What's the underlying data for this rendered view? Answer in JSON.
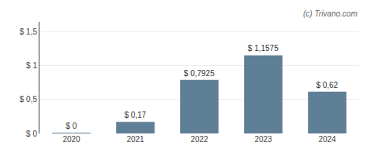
{
  "chart_data": {
    "type": "bar",
    "categories": [
      "2020",
      "2021",
      "2022",
      "2023",
      "2024"
    ],
    "values": [
      0.001,
      0.17,
      0.7925,
      1.1575,
      0.62
    ],
    "value_labels": [
      "$ 0",
      "$ 0,17",
      "$ 0,7925",
      "$ 1,1575",
      "$ 0,62"
    ],
    "data_labels": true,
    "color": "#5f7f96",
    "ylim": [
      0,
      1.65
    ],
    "yticks": [
      {
        "value": 0,
        "label": "$ 0"
      },
      {
        "value": 0.5,
        "label": "$ 0,5"
      },
      {
        "value": 1.0,
        "label": "$ 1"
      },
      {
        "value": 1.5,
        "label": "$ 1,5"
      }
    ],
    "grid": true,
    "annotations": [
      "(c) Trivano.com"
    ]
  }
}
